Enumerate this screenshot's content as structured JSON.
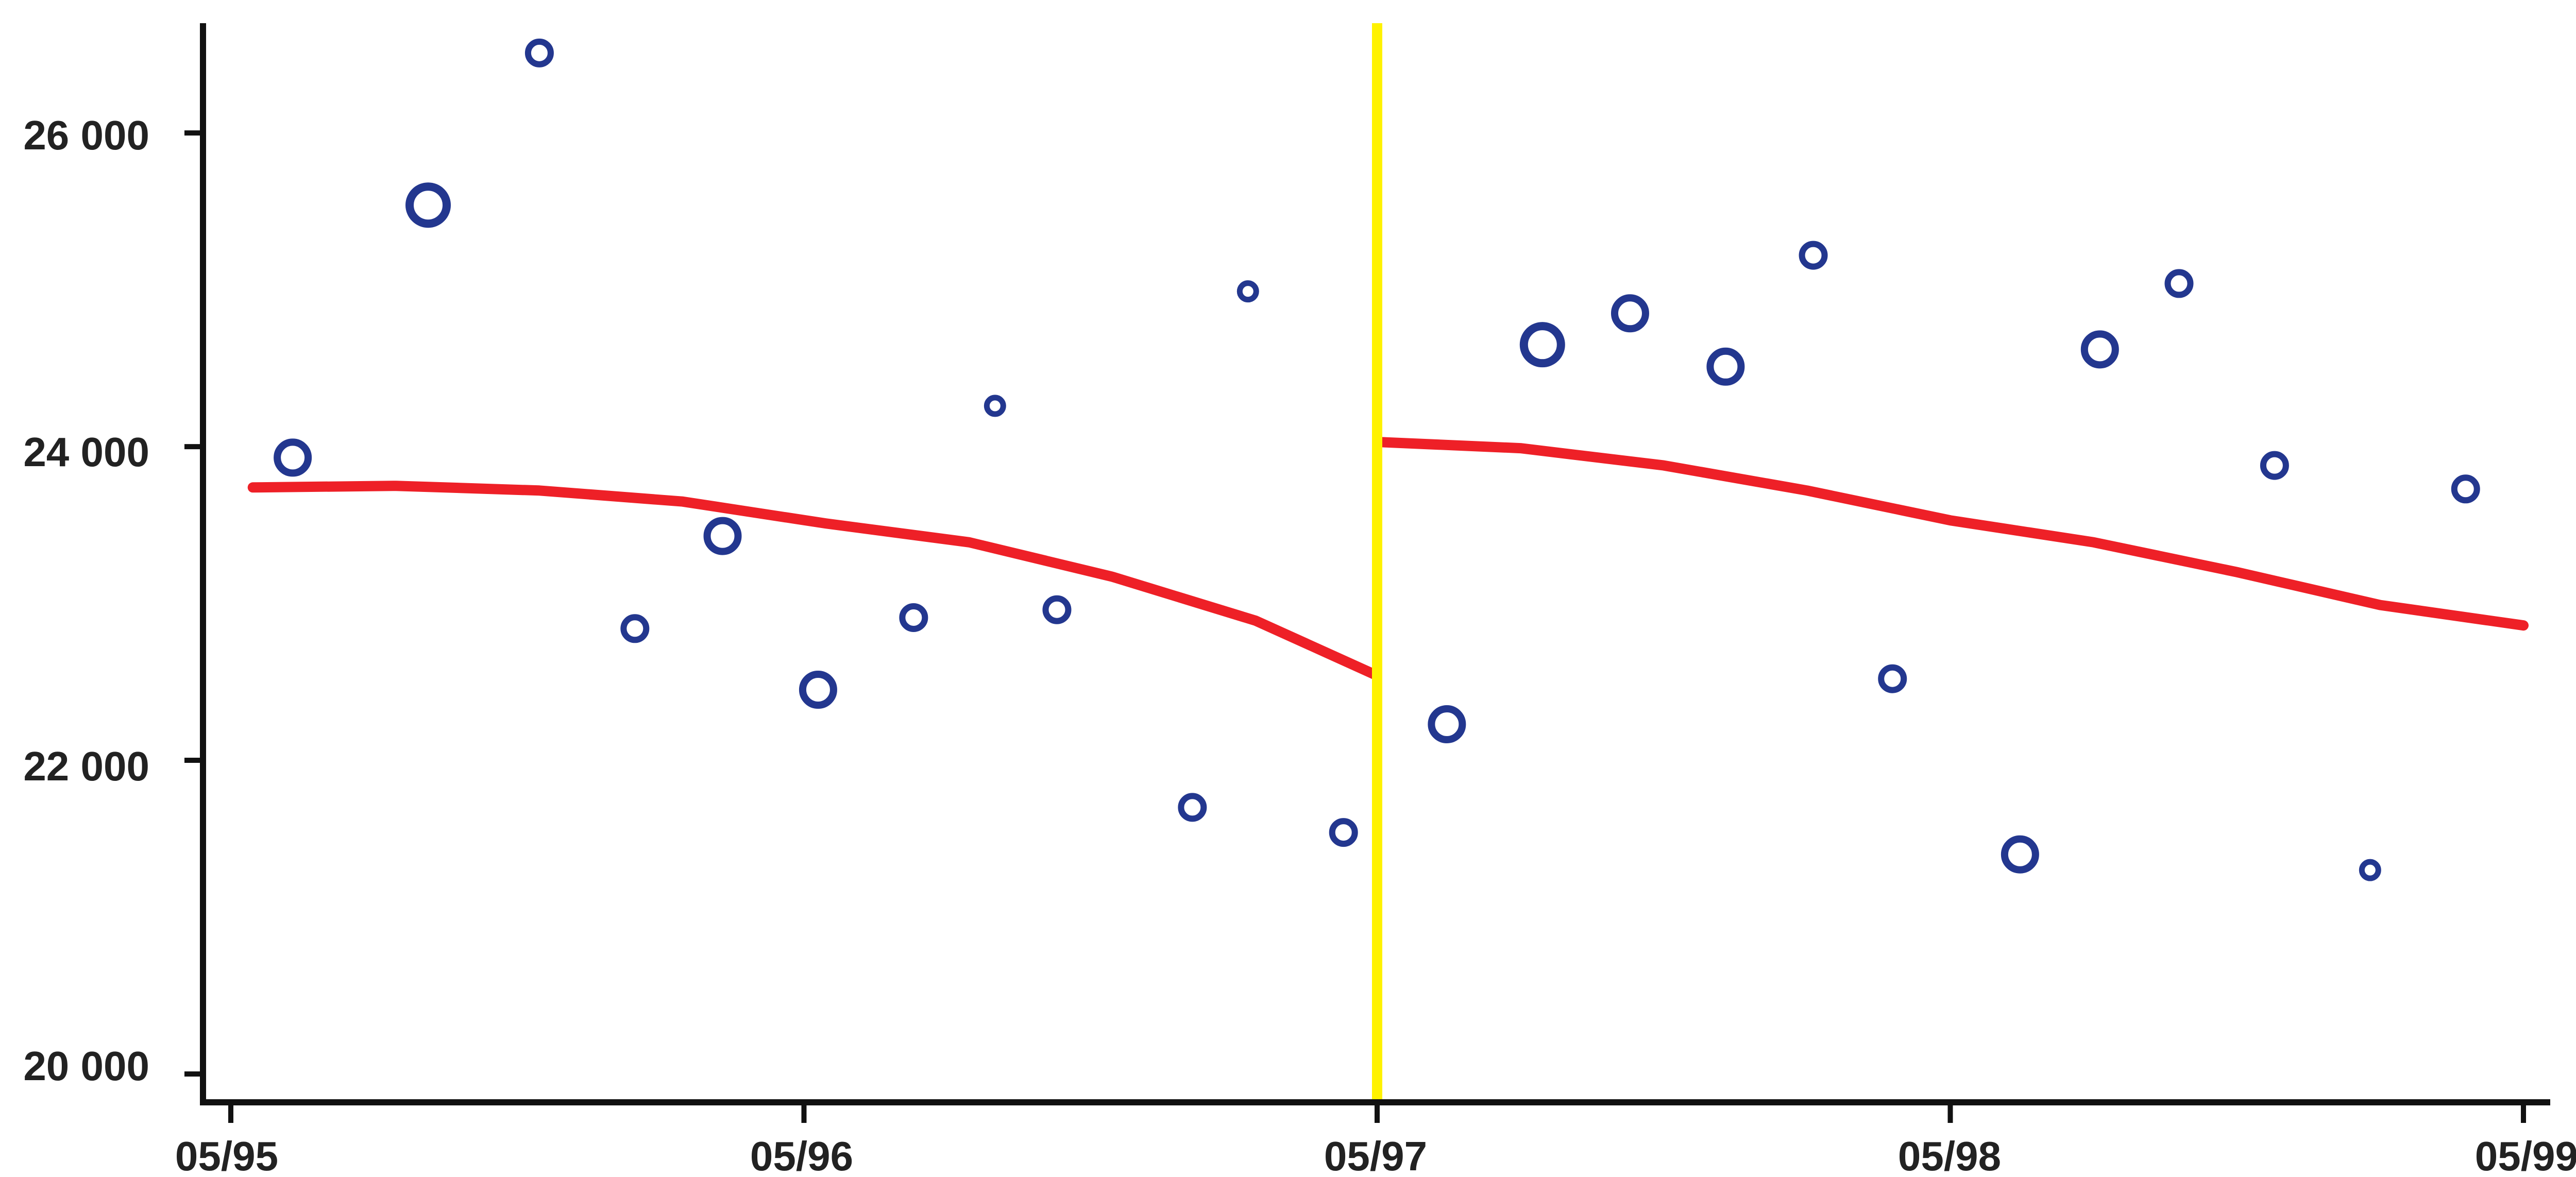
{
  "chart_data": {
    "type": "scatter",
    "title": "",
    "xlabel": "",
    "ylabel": "",
    "x_tick_labels": [
      "05/95",
      "05/96",
      "05/97",
      "05/98",
      "05/99"
    ],
    "y_tick_labels": [
      "20 000",
      "22 000",
      "24 000",
      "26 000"
    ],
    "xlim": [
      "1995-05",
      "1999-05"
    ],
    "ylim": [
      20000,
      26700
    ],
    "grid": false,
    "legend": "none",
    "breakpoint": {
      "x": "1997-05",
      "color": "#fff200"
    },
    "series": [
      {
        "kind": "scatter",
        "color": "#23378f",
        "points": [
          {
            "x": "1995-06-10",
            "y": 23930,
            "size": "large"
          },
          {
            "x": "1995-09-05",
            "y": 25540,
            "size": "xlarge"
          },
          {
            "x": "1995-11-15",
            "y": 26510,
            "size": "medium"
          },
          {
            "x": "1996-01-15",
            "y": 22840,
            "size": "medium"
          },
          {
            "x": "1996-03-10",
            "y": 23430,
            "size": "large"
          },
          {
            "x": "1996-05-10",
            "y": 22450,
            "size": "large"
          },
          {
            "x": "1996-07-10",
            "y": 22910,
            "size": "medium"
          },
          {
            "x": "1996-09-01",
            "y": 24260,
            "size": "small"
          },
          {
            "x": "1996-10-10",
            "y": 22960,
            "size": "medium"
          },
          {
            "x": "1997-01-05",
            "y": 21700,
            "size": "medium"
          },
          {
            "x": "1997-02-10",
            "y": 24990,
            "size": "small"
          },
          {
            "x": "1997-04-10",
            "y": 21540,
            "size": "medium"
          },
          {
            "x": "1997-06-15",
            "y": 22230,
            "size": "large"
          },
          {
            "x": "1997-08-15",
            "y": 24650,
            "size": "xlarge"
          },
          {
            "x": "1997-10-10",
            "y": 24850,
            "size": "large"
          },
          {
            "x": "1997-12-10",
            "y": 24510,
            "size": "large"
          },
          {
            "x": "1998-02-05",
            "y": 25220,
            "size": "medium"
          },
          {
            "x": "1998-03-25",
            "y": 22520,
            "size": "medium"
          },
          {
            "x": "1998-06-15",
            "y": 21400,
            "size": "large"
          },
          {
            "x": "1998-08-05",
            "y": 24620,
            "size": "large"
          },
          {
            "x": "1998-09-25",
            "y": 25040,
            "size": "medium"
          },
          {
            "x": "1998-11-25",
            "y": 23880,
            "size": "medium"
          },
          {
            "x": "1999-01-25",
            "y": 21300,
            "size": "small"
          },
          {
            "x": "1999-03-25",
            "y": 23730,
            "size": "medium"
          }
        ]
      },
      {
        "kind": "line",
        "segment": "before",
        "color": "#ee2027",
        "points": [
          {
            "x": "1995-05-15",
            "y": 23740
          },
          {
            "x": "1995-08-15",
            "y": 23750
          },
          {
            "x": "1995-11-15",
            "y": 23720
          },
          {
            "x": "1996-02-15",
            "y": 23650
          },
          {
            "x": "1996-05-15",
            "y": 23510
          },
          {
            "x": "1996-08-15",
            "y": 23390
          },
          {
            "x": "1996-11-15",
            "y": 23170
          },
          {
            "x": "1997-02-15",
            "y": 22890
          },
          {
            "x": "1997-05-01",
            "y": 22540
          }
        ]
      },
      {
        "kind": "line",
        "segment": "after",
        "color": "#ee2027",
        "points": [
          {
            "x": "1997-05-01",
            "y": 24030
          },
          {
            "x": "1997-08-01",
            "y": 23990
          },
          {
            "x": "1997-11-01",
            "y": 23880
          },
          {
            "x": "1998-02-01",
            "y": 23720
          },
          {
            "x": "1998-05-01",
            "y": 23530
          },
          {
            "x": "1998-08-01",
            "y": 23390
          },
          {
            "x": "1998-11-01",
            "y": 23200
          },
          {
            "x": "1999-02-01",
            "y": 22990
          },
          {
            "x": "1999-05-01",
            "y": 22860
          }
        ]
      }
    ]
  }
}
